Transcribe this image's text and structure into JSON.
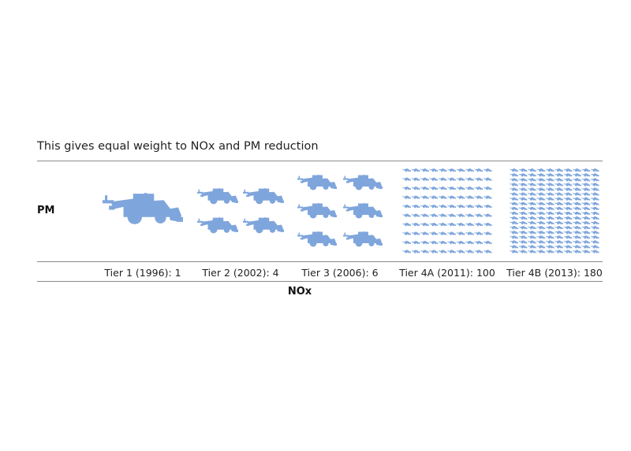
{
  "chart_data": {
    "type": "pictograph",
    "title": "This gives equal weight to NOx and PM reduction",
    "xlabel": "NOx",
    "ylabel": "PM",
    "icon": "combine-harvester-icon",
    "icon_color": "#7fa6dc",
    "categories": [
      "Tier 1 (1996): 1",
      "Tier 2 (2002): 4",
      "Tier 3 (2006): 6",
      "Tier 4A (2011): 100",
      "Tier 4B (2013): 180"
    ],
    "values": [
      1,
      4,
      6,
      100,
      180
    ]
  }
}
